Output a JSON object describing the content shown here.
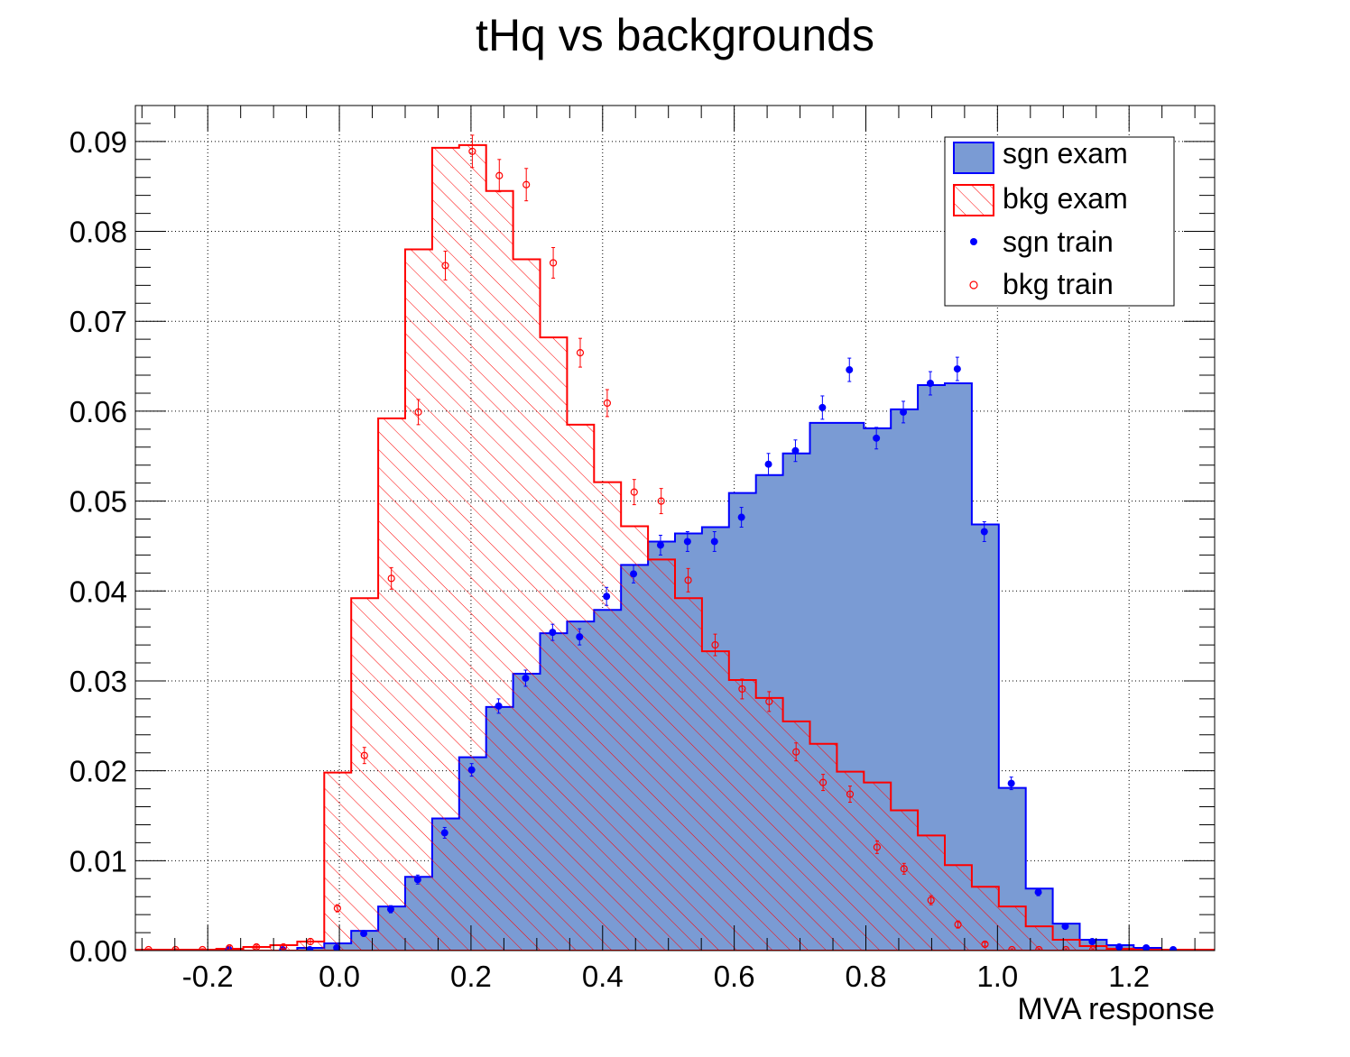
{
  "chart_data": {
    "type": "bar",
    "title": "tHq vs backgrounds",
    "xlabel": "MVA response",
    "ylabel": "",
    "xlim": [
      -0.31,
      1.33
    ],
    "ylim": [
      0.0,
      0.094
    ],
    "grid": true,
    "legend_position": "top-right",
    "x_ticks": [
      "-0.2",
      "0.0",
      "0.2",
      "0.4",
      "0.6",
      "0.8",
      "1.0",
      "1.2"
    ],
    "x_tick_values": [
      -0.2,
      0.0,
      0.2,
      0.4,
      0.6,
      0.8,
      1.0,
      1.2
    ],
    "y_ticks": [
      "0.00",
      "0.01",
      "0.02",
      "0.03",
      "0.04",
      "0.05",
      "0.06",
      "0.07",
      "0.08",
      "0.09"
    ],
    "y_tick_values": [
      0.0,
      0.01,
      0.02,
      0.03,
      0.04,
      0.05,
      0.06,
      0.07,
      0.08,
      0.09
    ],
    "bin_edges": [
      -0.31,
      -0.269,
      -0.228,
      -0.187,
      -0.146,
      -0.105,
      -0.064,
      -0.023,
      0.018,
      0.059,
      0.1,
      0.141,
      0.182,
      0.223,
      0.264,
      0.305,
      0.346,
      0.387,
      0.428,
      0.469,
      0.51,
      0.551,
      0.592,
      0.633,
      0.674,
      0.715,
      0.756,
      0.797,
      0.838,
      0.879,
      0.92,
      0.961,
      1.002,
      1.043,
      1.084,
      1.125,
      1.166,
      1.207,
      1.248,
      1.289,
      1.33
    ],
    "series": [
      {
        "name": "sgn exam",
        "style": "filled-histogram",
        "color": "#0000ff",
        "fill": "#7a9bd4",
        "values": [
          0,
          0,
          0,
          0,
          0,
          0,
          0.0003,
          0.0008,
          0.0022,
          0.0049,
          0.0082,
          0.0147,
          0.0215,
          0.0271,
          0.0308,
          0.0353,
          0.0366,
          0.0379,
          0.0429,
          0.0455,
          0.0464,
          0.0471,
          0.0509,
          0.0529,
          0.0553,
          0.0587,
          0.0587,
          0.0581,
          0.0602,
          0.0629,
          0.0631,
          0.0474,
          0.0181,
          0.0069,
          0.003,
          0.0012,
          0.0006,
          0.0003,
          0.0001,
          0.0001
        ]
      },
      {
        "name": "bkg exam",
        "style": "hatched-histogram",
        "color": "#ff0000",
        "values": [
          0.0001,
          0.0001,
          0.0001,
          0.0002,
          0.0004,
          0.0006,
          0.001,
          0.0198,
          0.0392,
          0.0592,
          0.078,
          0.0893,
          0.0896,
          0.0845,
          0.0769,
          0.0682,
          0.0585,
          0.0521,
          0.0472,
          0.0435,
          0.0392,
          0.0333,
          0.0301,
          0.0281,
          0.0255,
          0.023,
          0.0199,
          0.0187,
          0.0156,
          0.0128,
          0.0095,
          0.0071,
          0.0049,
          0.0027,
          0.0012,
          0.0005,
          0.0002,
          0.0001,
          0.0001,
          0.0001
        ]
      },
      {
        "name": "sgn train",
        "style": "markers-filled",
        "color": "#0000ff",
        "x": [
          -0.168,
          -0.086,
          -0.045,
          -0.004,
          0.037,
          0.078,
          0.119,
          0.16,
          0.201,
          0.242,
          0.283,
          0.324,
          0.365,
          0.406,
          0.447,
          0.488,
          0.529,
          0.57,
          0.611,
          0.652,
          0.693,
          0.734,
          0.775,
          0.816,
          0.857,
          0.898,
          0.939,
          0.98,
          1.021,
          1.062,
          1.103,
          1.144,
          1.185,
          1.226,
          1.267
        ],
        "values": [
          0.0001,
          0.0001,
          0.0001,
          0.0003,
          0.0019,
          0.0046,
          0.0079,
          0.0131,
          0.0201,
          0.0272,
          0.0303,
          0.0354,
          0.0349,
          0.0394,
          0.0419,
          0.0451,
          0.0455,
          0.0455,
          0.0482,
          0.0541,
          0.0556,
          0.0604,
          0.0646,
          0.057,
          0.0599,
          0.0631,
          0.0647,
          0.0466,
          0.0186,
          0.0065,
          0.0027,
          0.001,
          0.0004,
          0.0003,
          0.0001
        ],
        "errors": [
          0.0001,
          0.0001,
          0.0001,
          0.0002,
          0.0003,
          0.0004,
          0.0005,
          0.0006,
          0.0007,
          0.0008,
          0.0009,
          0.0009,
          0.0009,
          0.001,
          0.001,
          0.0011,
          0.0011,
          0.0011,
          0.0011,
          0.0012,
          0.0012,
          0.0013,
          0.0013,
          0.0012,
          0.0012,
          0.0013,
          0.0013,
          0.0011,
          0.0007,
          0.0004,
          0.0003,
          0.0002,
          0.0001,
          0.0001,
          0.0001
        ]
      },
      {
        "name": "bkg train",
        "style": "markers-open",
        "color": "#ff0000",
        "x": [
          -0.29,
          -0.249,
          -0.208,
          -0.167,
          -0.126,
          -0.085,
          -0.044,
          -0.003,
          0.038,
          0.079,
          0.12,
          0.161,
          0.202,
          0.243,
          0.284,
          0.325,
          0.366,
          0.407,
          0.448,
          0.489,
          0.53,
          0.571,
          0.612,
          0.653,
          0.694,
          0.735,
          0.776,
          0.817,
          0.858,
          0.899,
          0.94,
          0.981,
          1.022,
          1.063,
          1.104,
          1.145
        ],
        "values": [
          0.0001,
          0.0001,
          0.0001,
          0.0003,
          0.0004,
          0.0004,
          0.001,
          0.0047,
          0.0217,
          0.0414,
          0.0599,
          0.0762,
          0.0889,
          0.0862,
          0.0852,
          0.0765,
          0.0665,
          0.0609,
          0.051,
          0.05,
          0.0412,
          0.034,
          0.0291,
          0.0277,
          0.0221,
          0.0187,
          0.0174,
          0.0115,
          0.0091,
          0.0056,
          0.0029,
          0.0007,
          0.0001,
          0.0001,
          0.0001,
          0.0001
        ],
        "errors": [
          0.0001,
          0.0001,
          0.0001,
          0.0002,
          0.0002,
          0.0002,
          0.0003,
          0.0004,
          0.0009,
          0.0012,
          0.0014,
          0.0016,
          0.0018,
          0.0018,
          0.0018,
          0.0017,
          0.0016,
          0.0015,
          0.0014,
          0.0014,
          0.0013,
          0.0012,
          0.0011,
          0.0011,
          0.001,
          0.0009,
          0.0009,
          0.0007,
          0.0006,
          0.0005,
          0.0004,
          0.0002,
          0.0001,
          0.0001,
          0.0001,
          0.0001
        ]
      }
    ]
  }
}
